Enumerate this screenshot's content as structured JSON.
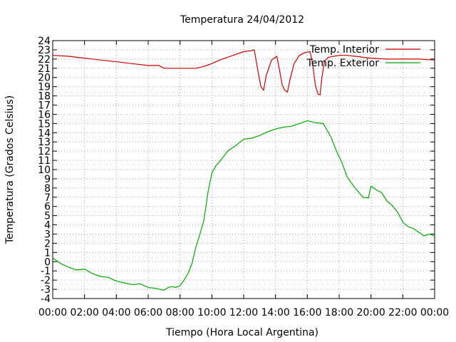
{
  "chart_data": {
    "type": "line",
    "title": "Temperatura 24/04/2012",
    "xlabel": "Tiempo (Hora Local Argentina)",
    "ylabel": "Temperatura (Grados Celsius)",
    "xlim": [
      "00:00",
      "24:00"
    ],
    "ylim": [
      -4,
      24
    ],
    "grid": true,
    "legend_position": "top-right",
    "x_ticks": [
      "00:00",
      "02:00",
      "04:00",
      "06:00",
      "08:00",
      "10:00",
      "12:00",
      "14:00",
      "16:00",
      "18:00",
      "20:00",
      "22:00",
      "00:00"
    ],
    "y_ticks": [
      -4,
      -3,
      -2,
      -1,
      0,
      1,
      2,
      3,
      4,
      5,
      6,
      7,
      8,
      9,
      10,
      11,
      12,
      13,
      14,
      15,
      16,
      17,
      18,
      19,
      20,
      21,
      22,
      23,
      24
    ],
    "series": [
      {
        "name": "Temp. Interior",
        "color": "#cc0000",
        "x": [
          "00:00",
          "01:00",
          "02:00",
          "03:00",
          "04:00",
          "05:00",
          "06:00",
          "06:40",
          "07:00",
          "08:00",
          "09:00",
          "09:30",
          "10:00",
          "10:30",
          "11:00",
          "11:30",
          "12:00",
          "12:30",
          "12:40",
          "12:55",
          "13:05",
          "13:15",
          "13:25",
          "13:45",
          "14:05",
          "14:15",
          "14:25",
          "14:35",
          "14:45",
          "14:55",
          "15:10",
          "15:30",
          "15:50",
          "16:10",
          "16:20",
          "16:30",
          "16:40",
          "16:48",
          "16:55",
          "17:05",
          "17:20",
          "17:40",
          "18:00",
          "18:30",
          "19:00",
          "19:30",
          "20:00",
          "21:00",
          "22:00",
          "23:00",
          "24:00"
        ],
        "y": [
          22.4,
          22.3,
          22.1,
          21.9,
          21.7,
          21.5,
          21.3,
          21.3,
          21.0,
          21.0,
          21.0,
          21.2,
          21.5,
          21.9,
          22.2,
          22.5,
          22.8,
          22.9,
          23.0,
          20.5,
          19.0,
          18.6,
          20.2,
          21.9,
          22.3,
          20.8,
          19.2,
          18.6,
          18.4,
          19.8,
          21.5,
          22.4,
          22.7,
          22.8,
          21.5,
          19.2,
          18.2,
          18.1,
          20.0,
          21.8,
          22.2,
          22.3,
          22.4,
          22.4,
          22.3,
          22.2,
          22.1,
          22.0,
          22.0,
          22.0,
          21.9
        ]
      },
      {
        "name": "Temp. Exterior",
        "color": "#00aa00",
        "x": [
          "00:00",
          "00:30",
          "01:00",
          "01:30",
          "02:00",
          "02:30",
          "03:00",
          "03:30",
          "04:00",
          "04:30",
          "05:00",
          "05:30",
          "06:00",
          "06:30",
          "07:00",
          "07:15",
          "07:30",
          "07:45",
          "08:00",
          "08:15",
          "08:30",
          "08:45",
          "09:00",
          "09:15",
          "09:30",
          "09:45",
          "10:00",
          "10:15",
          "10:30",
          "11:00",
          "11:30",
          "12:00",
          "12:30",
          "13:00",
          "13:30",
          "14:00",
          "14:30",
          "15:00",
          "15:30",
          "16:00",
          "16:15",
          "16:30",
          "17:00",
          "17:30",
          "17:50",
          "18:10",
          "18:30",
          "19:00",
          "19:30",
          "19:50",
          "20:00",
          "20:20",
          "20:40",
          "21:00",
          "21:20",
          "21:40",
          "22:00",
          "22:20",
          "22:40",
          "23:00",
          "23:20",
          "23:40",
          "24:00"
        ],
        "y": [
          0.4,
          -0.2,
          -0.6,
          -0.9,
          -0.8,
          -1.3,
          -1.6,
          -1.7,
          -2.1,
          -2.3,
          -2.5,
          -2.4,
          -2.8,
          -2.9,
          -3.1,
          -2.8,
          -2.7,
          -2.8,
          -2.6,
          -2.0,
          -1.3,
          -0.2,
          1.6,
          3.0,
          4.5,
          7.5,
          9.6,
          10.4,
          10.9,
          12.0,
          12.6,
          13.3,
          13.4,
          13.7,
          14.1,
          14.4,
          14.6,
          14.7,
          15.0,
          15.3,
          15.2,
          15.1,
          15.0,
          13.5,
          12.0,
          10.8,
          9.2,
          8.0,
          7.0,
          6.9,
          8.2,
          7.8,
          7.5,
          6.6,
          6.1,
          5.4,
          4.3,
          3.8,
          3.6,
          3.2,
          2.8,
          3.0,
          2.8
        ]
      }
    ]
  }
}
